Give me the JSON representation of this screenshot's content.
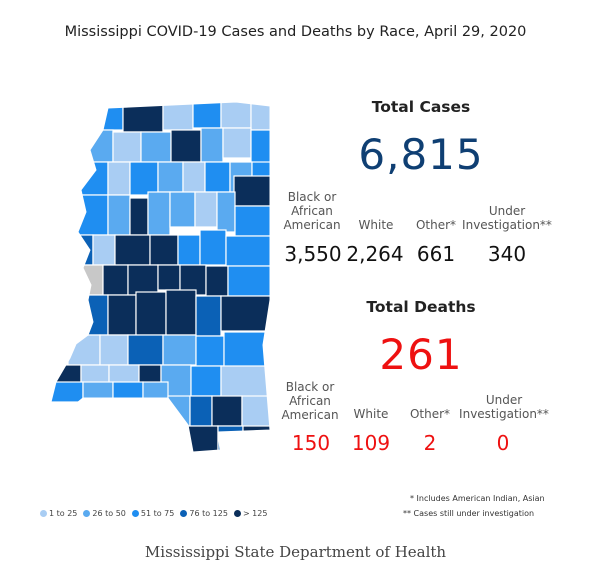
{
  "title": "Mississippi COVID-19 Cases and Deaths by Race, April 29, 2020",
  "colors": {
    "c1": "#a9cdf3",
    "c2": "#5aaaf0",
    "c3": "#1f8ef1",
    "c4": "#0b61b6",
    "c5": "#0b2e5a",
    "cases": "#0f3f73",
    "deaths": "#ee1111",
    "na": "#c8c8c8"
  },
  "cases": {
    "title": "Total Cases",
    "total": "6,815",
    "categories": [
      {
        "label_lines": [
          "Black or",
          "African",
          "American"
        ],
        "value": "3,550"
      },
      {
        "label_lines": [
          "White"
        ],
        "value": "2,264"
      },
      {
        "label_lines": [
          "Other*"
        ],
        "value": "661"
      },
      {
        "label_lines": [
          "Under",
          "Investigation**"
        ],
        "value": "340"
      }
    ]
  },
  "deaths": {
    "title": "Total Deaths",
    "total": "261",
    "categories": [
      {
        "label_lines": [
          "Black or",
          "African",
          "American"
        ],
        "value": "150"
      },
      {
        "label_lines": [
          "White"
        ],
        "value": "109"
      },
      {
        "label_lines": [
          "Other*"
        ],
        "value": "2"
      },
      {
        "label_lines": [
          "Under",
          "Investigation**"
        ],
        "value": "0"
      }
    ]
  },
  "legend": [
    {
      "label": "1 to 25",
      "color": "#a9cdf3"
    },
    {
      "label": "26 to 50",
      "color": "#5aaaf0"
    },
    {
      "label": "51 to 75",
      "color": "#1f8ef1"
    },
    {
      "label": "76 to 125",
      "color": "#0b61b6"
    },
    {
      "label": "> 125",
      "color": "#0b2e5a"
    }
  ],
  "notes": {
    "other": "* Includes American Indian, Asian",
    "under": "** Cases still under investigation"
  },
  "footer": "Mississippi State Department of Health"
}
